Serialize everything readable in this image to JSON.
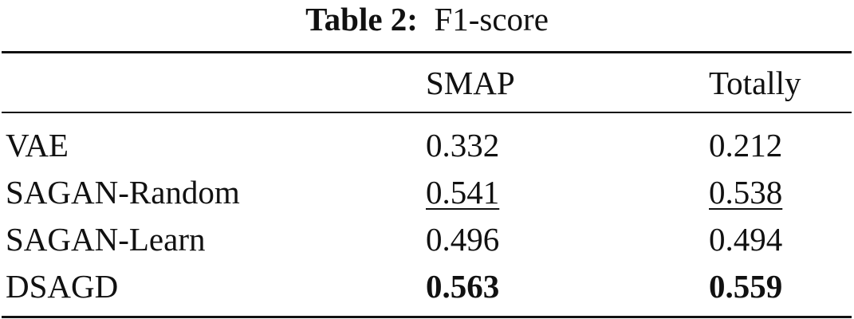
{
  "caption": {
    "label": "Table 2:",
    "text": "F1-score"
  },
  "columns": [
    "",
    "SMAP",
    "Totally"
  ],
  "rows": [
    {
      "method": "VAE",
      "smap": "0.332",
      "totally": "0.212"
    },
    {
      "method": "SAGAN-Random",
      "smap": "0.541",
      "totally": "0.538"
    },
    {
      "method": "SAGAN-Learn",
      "smap": "0.496",
      "totally": "0.494"
    },
    {
      "method": "DSAGD",
      "smap": "0.563",
      "totally": "0.559"
    }
  ]
}
